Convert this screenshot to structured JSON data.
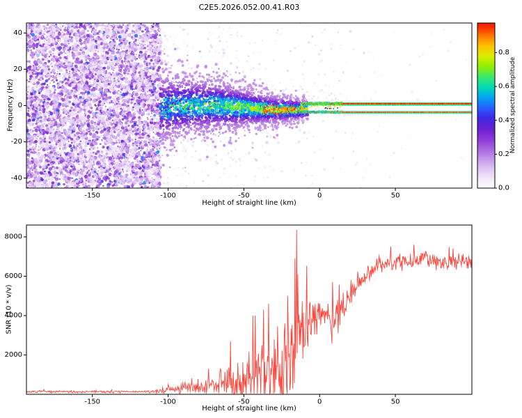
{
  "chart_data": [
    {
      "type": "heatmap",
      "title": "C2E5.2026.052.00.41.R03",
      "xlabel": "Height of straight line (km)",
      "ylabel": "Frequency (Hz)",
      "xlim": [
        -193.5,
        100.5
      ],
      "ylim": [
        -45.5,
        45.5
      ],
      "xticks": [
        -150,
        -100,
        -50,
        0,
        50
      ],
      "yticks": [
        -40,
        -20,
        0,
        20,
        40
      ],
      "seed": 42,
      "colorbar": {
        "label": "Normalized spectral amplitude",
        "ticks": [
          0.0,
          0.2,
          0.4,
          0.6,
          0.8
        ],
        "vmax": 0.975,
        "colormap": [
          [
            0.0,
            "#ffffff"
          ],
          [
            0.05,
            "#f3eafb"
          ],
          [
            0.12,
            "#ddc4f2"
          ],
          [
            0.2,
            "#b97fe6"
          ],
          [
            0.28,
            "#9340d8"
          ],
          [
            0.35,
            "#6a1fd0"
          ],
          [
            0.42,
            "#3c2ae8"
          ],
          [
            0.48,
            "#2463ff"
          ],
          [
            0.54,
            "#00a8f0"
          ],
          [
            0.6,
            "#00ddb0"
          ],
          [
            0.66,
            "#3ce86a"
          ],
          [
            0.72,
            "#8ff000"
          ],
          [
            0.78,
            "#d8ec00"
          ],
          [
            0.84,
            "#ffc400"
          ],
          [
            0.9,
            "#ff7800"
          ],
          [
            0.95,
            "#ff3000"
          ],
          [
            1.0,
            "#d80000"
          ]
        ]
      },
      "regions": {
        "noise_speckle": {
          "x_range": [
            -193.5,
            -105
          ],
          "amplitude_range": [
            0.02,
            0.55
          ]
        },
        "echo_band": {
          "x_range": [
            -105,
            -8
          ],
          "center_hz": -1.2,
          "sigma_profile": [
            [
              -105,
              11
            ],
            [
              -60,
              7.5
            ],
            [
              -30,
              4.5
            ],
            [
              -8,
              3
            ]
          ]
        },
        "narrow_lines": {
          "x_range": [
            -12,
            100.5
          ],
          "line1_hz": 1.0,
          "line2_hz": -3.6
        }
      }
    },
    {
      "type": "line",
      "xlabel": "Height of straight line (km)",
      "ylabel": "SNR (10 * v/v)",
      "xlim": [
        -193.5,
        100.5
      ],
      "ylim": [
        0,
        8600
      ],
      "xticks": [
        -150,
        -100,
        -50,
        0,
        50
      ],
      "yticks": [
        2000,
        4000,
        6000,
        8000
      ],
      "line_color": "#ff4136",
      "sample_step_km": 0.37,
      "seed": 7,
      "envelope": [
        [
          -193,
          130,
          70
        ],
        [
          -110,
          130,
          70
        ],
        [
          -104,
          180,
          130
        ],
        [
          -97,
          260,
          240
        ],
        [
          -90,
          300,
          360
        ],
        [
          -82,
          330,
          430
        ],
        [
          -74,
          380,
          620
        ],
        [
          -66,
          520,
          950
        ],
        [
          -60,
          700,
          1600
        ],
        [
          -55,
          620,
          1250
        ],
        [
          -50,
          720,
          1450
        ],
        [
          -45,
          950,
          2200
        ],
        [
          -40,
          1150,
          2600
        ],
        [
          -35,
          1350,
          2800
        ],
        [
          -30,
          1500,
          2650
        ],
        [
          -26,
          1700,
          2800
        ],
        [
          -22,
          1950,
          3050
        ],
        [
          -18,
          2250,
          3400
        ],
        [
          -15,
          2600,
          3800
        ],
        [
          -12,
          3000,
          2600
        ],
        [
          -8,
          3400,
          1800
        ],
        [
          -4,
          3800,
          1200
        ],
        [
          0,
          4100,
          900
        ],
        [
          4,
          4300,
          750
        ],
        [
          8,
          3900,
          1400
        ],
        [
          11,
          3400,
          1500
        ],
        [
          14,
          4200,
          1000
        ],
        [
          18,
          4800,
          900
        ],
        [
          22,
          5400,
          800
        ],
        [
          26,
          5800,
          700
        ],
        [
          30,
          6100,
          620
        ],
        [
          35,
          6400,
          560
        ],
        [
          40,
          6600,
          520
        ],
        [
          50,
          6700,
          500
        ],
        [
          60,
          6760,
          480
        ],
        [
          70,
          6800,
          480
        ],
        [
          80,
          6760,
          500
        ],
        [
          90,
          6800,
          480
        ],
        [
          100,
          6760,
          480
        ]
      ],
      "spikes": [
        [
          -15.2,
          8350
        ],
        [
          -16.1,
          6900
        ],
        [
          -14.3,
          6100
        ],
        [
          -21,
          5000
        ],
        [
          -33.5,
          4600
        ],
        [
          -37,
          4300
        ],
        [
          -44,
          4000
        ],
        [
          -59,
          2700
        ],
        [
          8.6,
          5700
        ],
        [
          47,
          7500
        ],
        [
          62,
          7600
        ],
        [
          88,
          7400
        ]
      ]
    }
  ]
}
